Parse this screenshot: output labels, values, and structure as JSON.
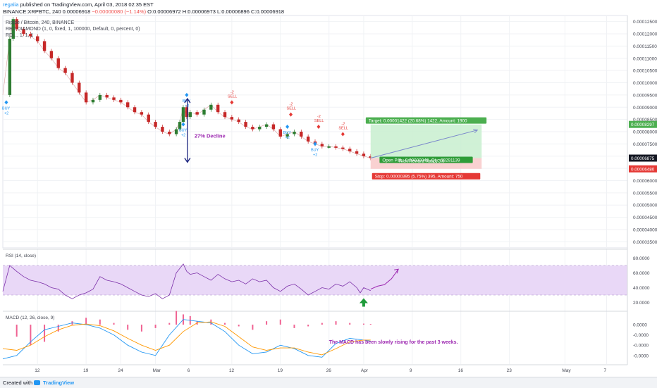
{
  "header": {
    "username": "regalia",
    "published_text": "published on TradingView.com, April 03, 2018 02:35 EST",
    "symbol_line": "BINANCE:XRPBTC, 240",
    "last_price": "0.00006918",
    "change": "−0.00000080 (−1.14%)",
    "ohlc": "O:0.00006972 H:0.00006973 L:0.00006896 C:0.00006918"
  },
  "legend": {
    "symbol": "Ripple / Bitcoin, 240, BINANCE",
    "indicator1": "RED DIAMOND (1, 0, fixed, 1, 100000, Default, 0, percent, 0)",
    "indicator2": "RD..., 1, 1, 1"
  },
  "footer": {
    "created_with": "Created with",
    "brand": "TradingView"
  },
  "colors": {
    "up_candle": "#2e7d32",
    "down_candle": "#c62828",
    "rsi_line": "#7b2fa8",
    "rsi_band": "#e9d8f7",
    "macd_hist": "#f06292",
    "macd_line": "#2196f3",
    "signal_line": "#ff9800",
    "target_box": "#4caf50",
    "stop_box": "#e53935",
    "annotation": "#9c27b0"
  },
  "chart_data": [
    {
      "type": "line",
      "title": "Ripple / Bitcoin, 240, BINANCE",
      "ylim": [
        3.25e-05,
        0.0001275
      ],
      "y_ticks": [
        "0.00012500",
        "0.00012000",
        "0.00011500",
        "0.00011000",
        "0.00010500",
        "0.00010000",
        "0.00009500",
        "0.00009000",
        "0.00008500",
        "0.00008000",
        "0.00007500",
        "0.00007000",
        "0.00006500",
        "0.00006000",
        "0.00005500",
        "0.00005000",
        "0.00004500",
        "0.00004000",
        "0.00003500"
      ],
      "y_tick_values": [
        0.000125,
        0.00012,
        0.000115,
        0.00011,
        0.000105,
        0.0001,
        9.5e-05,
        9e-05,
        8.5e-05,
        8e-05,
        7.5e-05,
        7e-05,
        6.5e-05,
        6e-05,
        5.5e-05,
        5e-05,
        4.5e-05,
        4e-05,
        3.5e-05
      ],
      "x_ticks": [
        "12",
        "19",
        "24",
        "Mar",
        "6",
        "12",
        "19",
        "26",
        "Apr",
        "9",
        "16",
        "23",
        "May",
        "7"
      ],
      "x_tick_days": [
        12,
        19,
        24,
        29,
        34,
        40,
        47,
        54,
        59,
        66,
        73,
        80,
        88,
        94
      ],
      "x_range_days": [
        7,
        97
      ],
      "series": [
        {
          "x_days": [
            7,
            8,
            8.5,
            9,
            10,
            11,
            12,
            13,
            14,
            15,
            16,
            17,
            18,
            19,
            20,
            21,
            22,
            23,
            24,
            25,
            26,
            27,
            28,
            29,
            30,
            31,
            32,
            32.5,
            33,
            33.5,
            34,
            35,
            36,
            37,
            38,
            39,
            40,
            41,
            42,
            43,
            44,
            45,
            46,
            47,
            48,
            49,
            50,
            51,
            52,
            53,
            54,
            55,
            56,
            57,
            58,
            59,
            60
          ],
          "price": [
            9.5e-05,
            0.000118,
            0.000126,
            0.000122,
            0.00012,
            0.000119,
            0.000117,
            0.000113,
            0.00011,
            0.000106,
            0.000104,
            0.0001,
            9.6e-05,
            9.2e-05,
            9.3e-05,
            9.5e-05,
            9.4e-05,
            9.3e-05,
            9.2e-05,
            9e-05,
            8.8e-05,
            8.7e-05,
            8.4e-05,
            8.2e-05,
            8e-05,
            7.9e-05,
            8.1e-05,
            8.4e-05,
            9e-05,
            8.6e-05,
            8.8e-05,
            8.7e-05,
            8.9e-05,
            9.1e-05,
            8.8e-05,
            8.6e-05,
            8.5e-05,
            8.4e-05,
            8.2e-05,
            8.1e-05,
            8.2e-05,
            8.3e-05,
            8.1e-05,
            7.8e-05,
            7.9e-05,
            8e-05,
            7.8e-05,
            7.6e-05,
            7.5e-05,
            7.4e-05,
            7.4e-05,
            7.35e-05,
            7.3e-05,
            7.2e-05,
            7.1e-05,
            7e-05,
            6.92e-05
          ]
        }
      ],
      "current_price": "0.00006875",
      "target_price_tag": "0.00008297",
      "stop_price_tag": "0.00006480",
      "annotations": {
        "decline": "27%  Decline",
        "target": "Target: 0.00001422 (20.68%) 1422, Amount: 1900",
        "open_pl": "Open P&L: 0.00000043, Qty: 63291139",
        "risk_reward": "Risk/Reward Ratio: 3.6",
        "stop": "Stop: 0.00000395 (5.75%) 395, Amount: 750",
        "buy_label": "BUY",
        "sell_label": "SELL",
        "plus2": "+2",
        "minus2": "-2"
      }
    },
    {
      "type": "line",
      "title": "RSI (14, close)",
      "ylim": [
        10,
        90
      ],
      "y_ticks": [
        "80.0000",
        "60.0000",
        "40.0000",
        "20.0000"
      ],
      "y_tick_values": [
        80,
        60,
        40,
        20
      ],
      "band": [
        30,
        70
      ],
      "series": [
        {
          "x_days": [
            7,
            8,
            9,
            10,
            11,
            12,
            13,
            14,
            15,
            16,
            17,
            18,
            19,
            20,
            21,
            22,
            23,
            24,
            25,
            26,
            27,
            28,
            29,
            30,
            31,
            32,
            33,
            33.5,
            34,
            35,
            36,
            37,
            38,
            39,
            40,
            41,
            42,
            43,
            44,
            45,
            46,
            47,
            48,
            49,
            50,
            51,
            52,
            53,
            54,
            55,
            56,
            57,
            58,
            58.5,
            59,
            60
          ],
          "values": [
            35,
            70,
            62,
            55,
            50,
            48,
            45,
            40,
            38,
            30,
            25,
            30,
            33,
            38,
            55,
            50,
            48,
            45,
            40,
            35,
            30,
            28,
            32,
            25,
            30,
            60,
            72,
            62,
            58,
            60,
            55,
            50,
            58,
            52,
            48,
            50,
            45,
            52,
            48,
            50,
            40,
            35,
            42,
            45,
            38,
            30,
            35,
            40,
            38,
            45,
            42,
            48,
            40,
            33,
            40,
            36
          ]
        },
        {
          "x_days": [
            60,
            61,
            62,
            63,
            64
          ],
          "values": [
            38,
            42,
            44,
            52,
            65
          ]
        }
      ]
    },
    {
      "type": "bar",
      "title": "MACD (12, 26, close, 9)",
      "ylim": [
        -1.15e-05,
        3.5e-06
      ],
      "y_ticks": [
        "0.0000",
        "-0.0000",
        "-0.0000",
        "-0.0000"
      ],
      "y_tick_values": [
        0,
        -3e-06,
        -6e-06,
        -9e-06
      ],
      "series": [
        {
          "name": "histogram",
          "x_days": [
            9,
            11,
            13,
            15,
            17,
            19,
            21,
            23,
            25,
            27,
            29,
            31,
            32,
            33,
            34,
            35,
            37,
            39,
            41,
            43,
            45,
            47,
            49,
            51,
            53,
            55,
            57,
            59,
            60
          ],
          "values": [
            -3.5e-06,
            -6e-06,
            -5e-06,
            -2e-06,
            1e-06,
            2e-06,
            1.5e-06,
            5e-07,
            -1.5e-06,
            -2e-06,
            -1e-06,
            5e-07,
            4e-06,
            3e-06,
            2.5e-06,
            1e-06,
            1.5e-06,
            5e-07,
            -5e-07,
            -1.5e-06,
            1e-06,
            1.5e-06,
            -1e-06,
            -5e-07,
            5e-07,
            1e-06,
            5e-07,
            3e-07,
            2e-07
          ]
        },
        {
          "name": "macd",
          "x_days": [
            7,
            9,
            11,
            13,
            15,
            17,
            19,
            21,
            23,
            25,
            27,
            29,
            31,
            33,
            35,
            37,
            39,
            41,
            43,
            45,
            47,
            49,
            51,
            53,
            55,
            57,
            59,
            60
          ],
          "values": [
            -1e-05,
            -9e-06,
            -5e-06,
            -1.5e-06,
            -5e-07,
            5e-07,
            0.0,
            -1e-06,
            -3e-06,
            -6e-06,
            -8e-06,
            -9e-06,
            -3e-06,
            1.5e-06,
            1e-06,
            5e-07,
            -2e-06,
            -6e-06,
            -8.5e-06,
            -8e-06,
            -6e-06,
            -7e-06,
            -9e-06,
            -9.5e-06,
            -5.5e-06,
            -4e-06,
            -4.5e-06,
            -4.8e-06
          ]
        },
        {
          "name": "signal",
          "x_days": [
            7,
            9,
            11,
            13,
            15,
            17,
            19,
            21,
            23,
            25,
            27,
            29,
            31,
            33,
            35,
            37,
            39,
            41,
            43,
            45,
            47,
            49,
            51,
            53,
            55,
            57,
            59,
            60
          ],
          "values": [
            -7e-06,
            -7.5e-06,
            -6e-06,
            -3.5e-06,
            -1.5e-06,
            -2e-07,
            2e-07,
            -3e-07,
            -1.8e-06,
            -4e-06,
            -6e-06,
            -7.5e-06,
            -6e-06,
            -2e-06,
            5e-07,
            8e-07,
            -5e-07,
            -3.5e-06,
            -6.5e-06,
            -7.5e-06,
            -6.8e-06,
            -6.8e-06,
            -8e-06,
            -8.8e-06,
            -7e-06,
            -5e-06,
            -4.5e-06,
            -4.5e-06
          ]
        }
      ],
      "annotation": "The MACD has been slowly rising for the past 3 weeks."
    }
  ]
}
